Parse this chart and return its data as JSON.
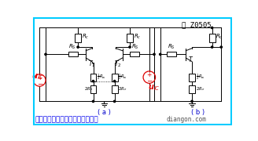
{
  "title": "图 Z0505",
  "subtitle": "基本差动放大电路的共模等效电路",
  "watermark": "diangon.com",
  "label_a": "( a )",
  "label_b": "( b )",
  "bg_color": "#ffffff",
  "border_color": "#00ccff",
  "fig_width": 3.28,
  "fig_height": 1.8,
  "dpi": 100,
  "title_color": "#000000",
  "subtitle_color": "#0000ee",
  "label_color": "#0000cc",
  "wire_color": "#000000",
  "component_color": "#000000",
  "red_color": "#dd0000"
}
